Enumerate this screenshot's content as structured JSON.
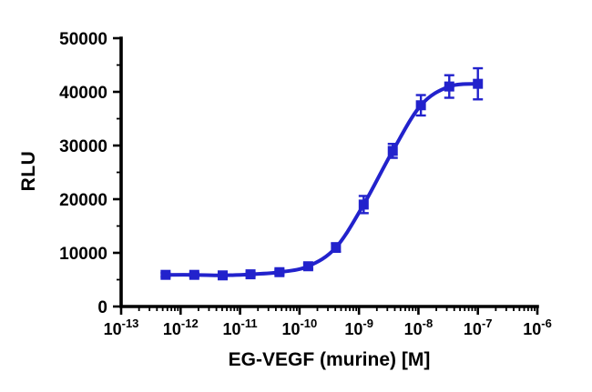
{
  "figure": {
    "background": "#ffffff",
    "accent_color": "#2222CC",
    "axis_color": "#000000"
  },
  "chart_data": {
    "type": "scatter",
    "title": "",
    "xlabel": "EG-VEGF (murine) [M]",
    "ylabel": "RLU",
    "x_scale": "log10",
    "x_log_range": [
      -13,
      -6
    ],
    "ylim": [
      0,
      50000
    ],
    "y_ticks": [
      0,
      10000,
      20000,
      30000,
      40000,
      50000
    ],
    "y_minor_step": 5000,
    "x_tick_exponents": [
      -13,
      -12,
      -11,
      -10,
      -9,
      -8,
      -7,
      -6
    ],
    "grid": "off",
    "legend": "none",
    "series": [
      {
        "name": "EG-VEGF (murine)",
        "color": "#2222CC",
        "marker": "square",
        "curve": "sigmoidal-fit",
        "x": [
          5.6e-13,
          1.7e-12,
          5.1e-12,
          1.5e-11,
          4.6e-11,
          1.4e-10,
          4.1e-10,
          1.2e-09,
          3.7e-09,
          1.1e-08,
          3.3e-08,
          1e-07
        ],
        "y": [
          5900,
          5900,
          5800,
          6000,
          6400,
          7500,
          11000,
          19000,
          29000,
          37500,
          41000,
          41500
        ],
        "yerr": [
          350,
          350,
          300,
          350,
          450,
          500,
          800,
          1600,
          1300,
          1900,
          2100,
          2900
        ]
      }
    ]
  }
}
